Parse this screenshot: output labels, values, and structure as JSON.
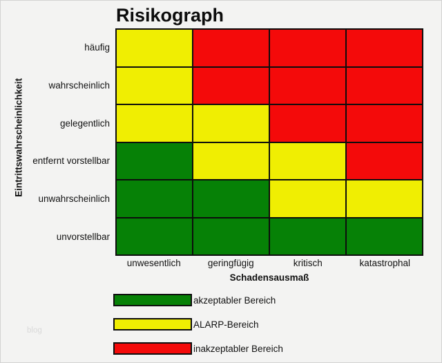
{
  "page": {
    "background": "#f3f3f2",
    "watermark": "blog"
  },
  "chart_data": {
    "type": "heatmap",
    "title": "Risikograph",
    "xlabel": "Schadensausmaß",
    "ylabel": "Eintrittswahrscheinlichkeit",
    "row_labels": [
      "häufig",
      "wahrscheinlich",
      "gelegentlich",
      "entfernt vorstellbar",
      "unwahrscheinlich",
      "unvorstellbar"
    ],
    "col_labels": [
      "unwesentlich",
      "geringfügig",
      "kritisch",
      "katastrophal"
    ],
    "matrix": [
      [
        "alarp",
        "unacceptable",
        "unacceptable",
        "unacceptable"
      ],
      [
        "alarp",
        "unacceptable",
        "unacceptable",
        "unacceptable"
      ],
      [
        "alarp",
        "alarp",
        "unacceptable",
        "unacceptable"
      ],
      [
        "acceptable",
        "alarp",
        "alarp",
        "unacceptable"
      ],
      [
        "acceptable",
        "acceptable",
        "alarp",
        "alarp"
      ],
      [
        "acceptable",
        "acceptable",
        "acceptable",
        "acceptable"
      ]
    ],
    "zone_colors": {
      "acceptable": "#068106",
      "alarp": "#f0ee02",
      "unacceptable": "#f40a0a"
    },
    "grid_line_color": "#0d0d0d",
    "grid": "on",
    "legend_position": "bottom-left",
    "legend": [
      {
        "zone": "acceptable",
        "label": "akzeptabler Bereich"
      },
      {
        "zone": "alarp",
        "label": "ALARP-Bereich"
      },
      {
        "zone": "unacceptable",
        "label": "inakzeptabler Bereich"
      }
    ]
  }
}
